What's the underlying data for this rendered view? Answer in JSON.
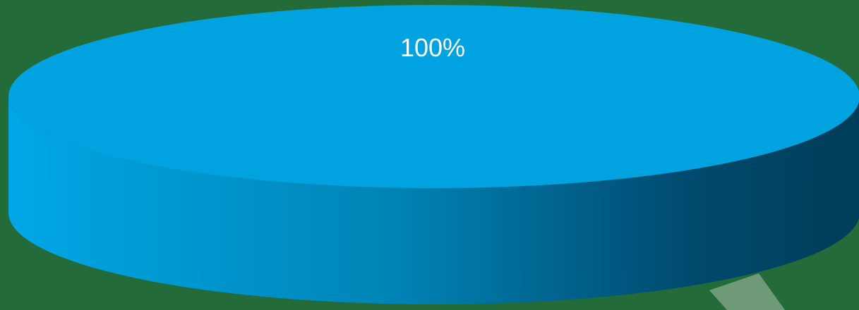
{
  "chart_data": {
    "type": "pie",
    "style": "3d",
    "slices": [
      {
        "value": 100,
        "label": "100%"
      }
    ],
    "legend": "none",
    "grid": false
  },
  "colors": {
    "background": "#236b38",
    "slice_top": "#00a3e0",
    "side_light": "#00a7e6",
    "side_dark": "#003d58",
    "label": "#ffffff",
    "leader_line": "#6e9a78"
  }
}
